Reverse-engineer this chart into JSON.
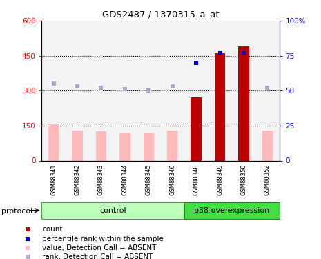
{
  "title": "GDS2487 / 1370315_a_at",
  "samples": [
    "GSM88341",
    "GSM88342",
    "GSM88343",
    "GSM88344",
    "GSM88345",
    "GSM88346",
    "GSM88348",
    "GSM88349",
    "GSM88350",
    "GSM88352"
  ],
  "count_values": [
    null,
    null,
    null,
    null,
    null,
    null,
    270,
    460,
    490,
    null
  ],
  "count_absent_values": [
    155,
    130,
    125,
    120,
    120,
    130,
    null,
    null,
    null,
    130
  ],
  "rank_values": [
    null,
    null,
    null,
    null,
    null,
    null,
    70,
    77,
    77,
    null
  ],
  "rank_absent_values": [
    55,
    53,
    52,
    51,
    50,
    53,
    null,
    null,
    null,
    52
  ],
  "control_count": 6,
  "ylim_left": [
    0,
    600
  ],
  "ylim_right": [
    0,
    100
  ],
  "yticks_left": [
    0,
    150,
    300,
    450,
    600
  ],
  "ytick_labels_left": [
    "0",
    "150",
    "300",
    "450",
    "600"
  ],
  "yticks_right": [
    0,
    25,
    50,
    75,
    100
  ],
  "ytick_labels_right": [
    "0",
    "25",
    "50",
    "75",
    "100%"
  ],
  "absent_bar_color": "#ffbbbb",
  "present_bar_color": "#bb0000",
  "absent_rank_color": "#aaaacc",
  "present_rank_color": "#0000cc",
  "bar_width": 0.45,
  "col_bg_color": "#dddddd",
  "plot_bg_color": "#ffffff",
  "control_band_color": "#bbffbb",
  "p38_band_color": "#44dd44",
  "legend_items": [
    {
      "label": "count",
      "color": "#bb0000"
    },
    {
      "label": "percentile rank within the sample",
      "color": "#0000cc"
    },
    {
      "label": "value, Detection Call = ABSENT",
      "color": "#ffbbbb"
    },
    {
      "label": "rank, Detection Call = ABSENT",
      "color": "#aaaacc"
    }
  ]
}
